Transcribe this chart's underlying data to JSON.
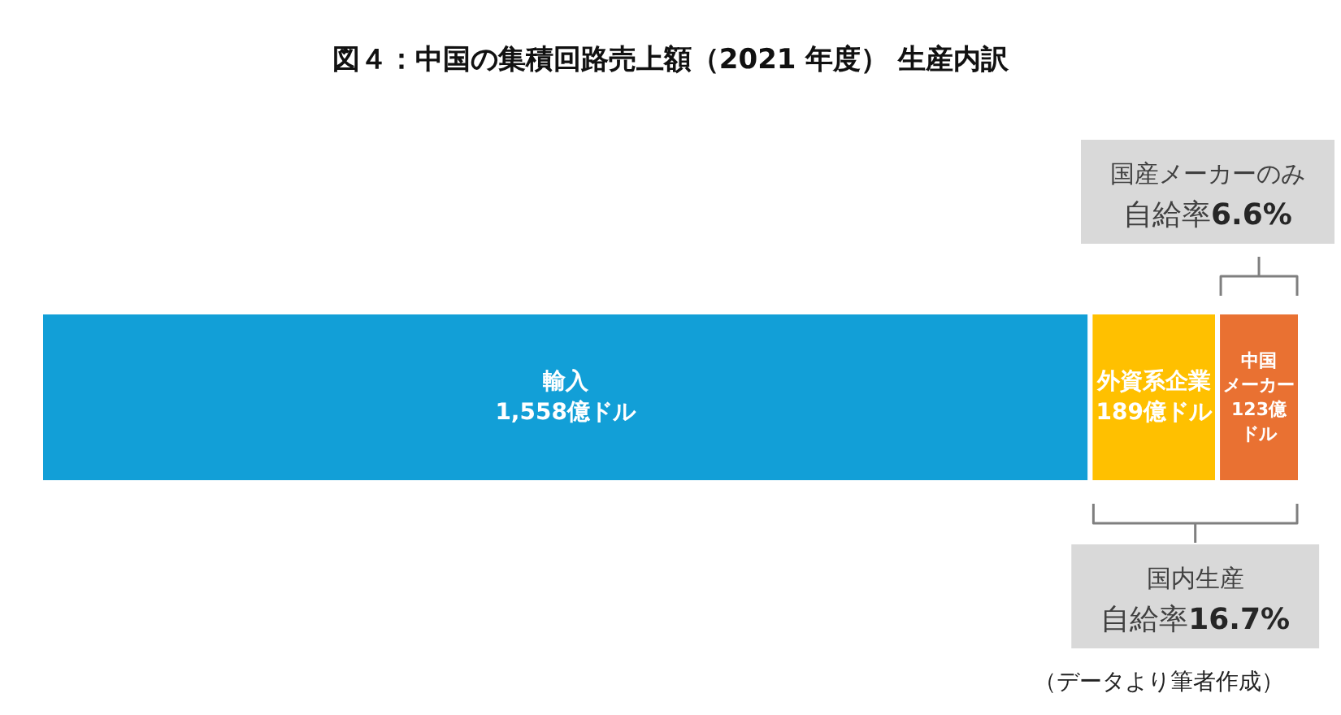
{
  "chart_data": {
    "type": "bar",
    "title": "図４：中国の集積回路売上額（2021 年度） 生産内訳",
    "orientation": "horizontal",
    "stacked": true,
    "categories": [
      null
    ],
    "series": [
      {
        "name": "輸入",
        "color": "#129fd7",
        "values": [
          1558
        ],
        "value_labels": [
          "1,558億ドル"
        ]
      },
      {
        "name": "外資系企業",
        "color": "#ffc000",
        "values": [
          189
        ],
        "value_labels": [
          "189億ドル"
        ]
      },
      {
        "name": "中国メーカー",
        "color": "#e97132",
        "values": [
          123
        ],
        "value_labels": [
          "123億ドル"
        ]
      }
    ],
    "annotations": [
      "国産メーカーのみ",
      "自給率6.6%",
      "国内生産",
      "自給率16.7%",
      "（データより筆者作成）"
    ]
  }
}
